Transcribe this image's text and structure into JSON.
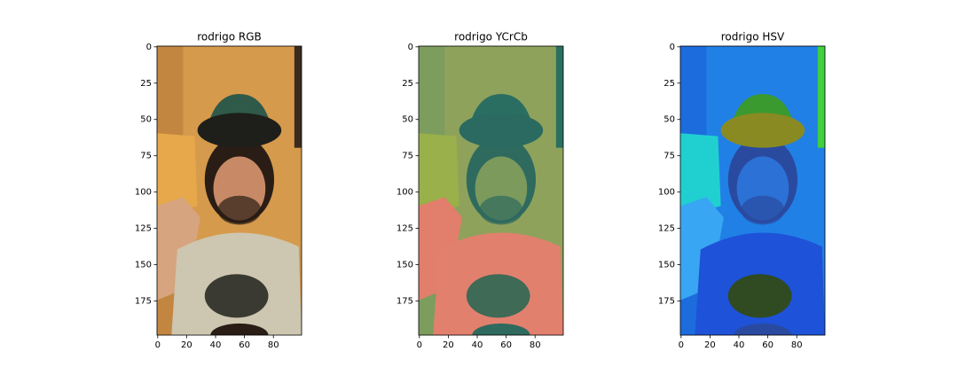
{
  "chart_data": [
    {
      "type": "image",
      "title": "rodrigo RGB",
      "xlim": [
        -0.5,
        99.5
      ],
      "ylim": [
        198.5,
        -0.5
      ],
      "xticks": [
        0,
        20,
        40,
        60,
        80
      ],
      "yticks": [
        0,
        25,
        50,
        75,
        100,
        125,
        150,
        175
      ]
    },
    {
      "type": "image",
      "title": "rodrigo YCrCb",
      "xlim": [
        -0.5,
        99.5
      ],
      "ylim": [
        198.5,
        -0.5
      ],
      "xticks": [
        0,
        20,
        40,
        60,
        80
      ],
      "yticks": [
        0,
        25,
        50,
        75,
        100,
        125,
        150,
        175
      ]
    },
    {
      "type": "image",
      "title": "rodrigo HSV",
      "xlim": [
        -0.5,
        99.5
      ],
      "ylim": [
        198.5,
        -0.5
      ],
      "xticks": [
        0,
        20,
        40,
        60,
        80
      ],
      "yticks": [
        0,
        25,
        50,
        75,
        100,
        125,
        150,
        175
      ]
    }
  ]
}
